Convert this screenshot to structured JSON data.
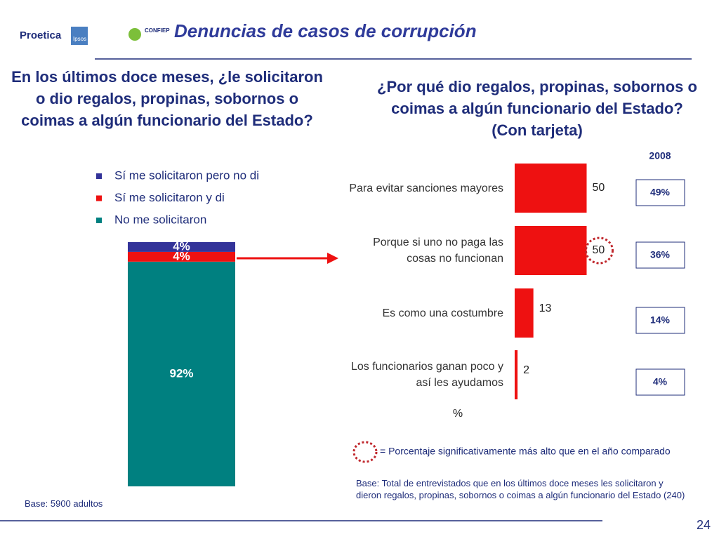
{
  "header": {
    "title": "Denuncias de casos de corrupción",
    "logos": [
      "Proetica",
      "Ipsos",
      "CONFIEP"
    ]
  },
  "chart_data": [
    {
      "type": "stacked_bar",
      "title": "En los últimos doce meses, ¿le solicitaron o dio regalos, propinas, sobornos o coimas a algún funcionario del Estado?",
      "series": [
        {
          "name": "Sí me solicitaron pero no di",
          "color": "#333399",
          "values": [
            4
          ],
          "value_labels": [
            "4%"
          ]
        },
        {
          "name": "Sí me solicitaron y di",
          "color": "#ee1111",
          "values": [
            4
          ],
          "value_labels": [
            "4%"
          ]
        },
        {
          "name": "No me solicitaron",
          "color": "#008080",
          "values": [
            92
          ],
          "value_labels": [
            "92%"
          ]
        }
      ],
      "stack_order": [
        2,
        1,
        0
      ],
      "note": "Base: 5900 adultos"
    },
    {
      "type": "hbar",
      "title": "¿Por qué dio regalos, propinas, sobornos o coimas a algún funcionario del Estado? (Con tarjeta)",
      "categories": [
        "Para evitar sanciones mayores",
        "Porque si uno no paga las cosas no funcionan",
        "Es como una costumbre",
        "Los funcionarios ganan poco y así les ayudamos"
      ],
      "values": [
        50,
        50,
        13,
        2
      ],
      "color": "#ee1111",
      "unit_label": "%",
      "comparison": {
        "name": "2008",
        "values": [
          49,
          36,
          14,
          4
        ],
        "value_labels": [
          "49%",
          "36%",
          "14%",
          "4%"
        ]
      },
      "significant": [
        false,
        true,
        false,
        false
      ],
      "significance_note": "= Porcentaje significativamente más alto que en el año comparado",
      "note": "Base: Total de entrevistados  que en los últimos doce meses les solicitaron y dieron regalos, propinas, sobornos o coimas a algún funcionario del Estado (240)"
    }
  ],
  "page_number": "24"
}
